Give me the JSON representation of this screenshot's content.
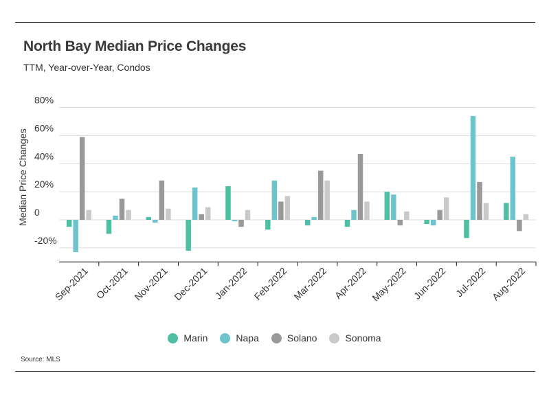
{
  "header": {
    "title": "North Bay Median Price Changes",
    "subtitle": "TTM, Year-over-Year, Condos"
  },
  "footer": {
    "source": "Source:  MLS"
  },
  "chart_data": {
    "type": "bar",
    "title": "North Bay Median Price Changes",
    "subtitle": "TTM, Year-over-Year, Condos",
    "xlabel": "",
    "ylabel": "Median Price Changes",
    "ylim": [
      -30,
      80
    ],
    "yticks": [
      -20,
      0,
      20,
      40,
      60,
      80
    ],
    "ytick_labels": [
      "-20%",
      "0",
      "20%",
      "40%",
      "60%",
      "80%"
    ],
    "grid": true,
    "legend_position": "bottom",
    "categories": [
      "Sep-2021",
      "Oct-2021",
      "Nov-2021",
      "Dec-2021",
      "Jan-2022",
      "Feb-2022",
      "Mar-2022",
      "Apr-2022",
      "May-2022",
      "Jun-2022",
      "Jul-2022",
      "Aug-2022"
    ],
    "series": [
      {
        "name": "Marin",
        "color": "#4dbfa4",
        "values": [
          -5,
          -10,
          2,
          -22,
          24,
          -7,
          -4,
          -5,
          20,
          -3,
          -13,
          12
        ]
      },
      {
        "name": "Napa",
        "color": "#6ec4cc",
        "values": [
          -23,
          3,
          -2,
          23,
          -1,
          28,
          2,
          7,
          18,
          -4,
          74,
          45
        ]
      },
      {
        "name": "Solano",
        "color": "#999999",
        "values": [
          59,
          15,
          28,
          4,
          -5,
          13,
          35,
          47,
          -4,
          7,
          27,
          -8
        ]
      },
      {
        "name": "Sonoma",
        "color": "#c9c9c9",
        "values": [
          7,
          7,
          8,
          9,
          7,
          17,
          28,
          13,
          6,
          16,
          12,
          4
        ]
      }
    ]
  }
}
